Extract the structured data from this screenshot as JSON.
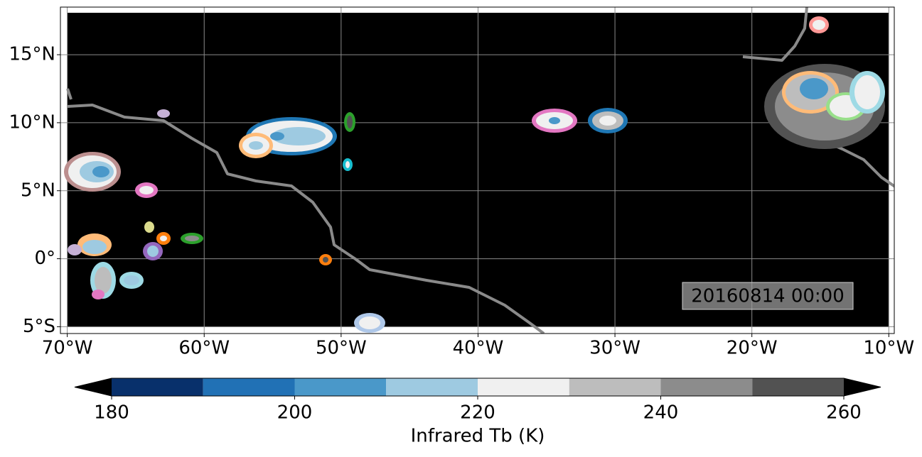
{
  "map": {
    "xlim": [
      -70.5,
      -9.6
    ],
    "ylim": [
      -5.5,
      18.5
    ],
    "xticks": [
      {
        "value": -70,
        "label": "70°W"
      },
      {
        "value": -60,
        "label": "60°W"
      },
      {
        "value": -50,
        "label": "50°W"
      },
      {
        "value": -40,
        "label": "40°W"
      },
      {
        "value": -30,
        "label": "30°W"
      },
      {
        "value": -20,
        "label": "20°W"
      },
      {
        "value": -10,
        "label": "10°W"
      }
    ],
    "yticks": [
      {
        "value": -5,
        "label": "5°S"
      },
      {
        "value": 0,
        "label": "0°"
      },
      {
        "value": 5,
        "label": "5°N"
      },
      {
        "value": 10,
        "label": "10°N"
      },
      {
        "value": 15,
        "label": "15°N"
      }
    ],
    "grid": true,
    "timestamp": "20160814 00:00"
  },
  "colorbar": {
    "label": "Infrared Tb (K)",
    "levels": [
      180,
      190,
      200,
      210,
      220,
      230,
      240,
      250,
      260
    ],
    "colors": [
      "#08306b",
      "#2171b5",
      "#4a98c9",
      "#9ecae1",
      "#f0f0f0",
      "#bdbdbd",
      "#8c8c8c",
      "#525252"
    ],
    "under_color": "#000000",
    "over_color": "#000000",
    "ticks": [
      180,
      200,
      220,
      240,
      260
    ]
  }
}
